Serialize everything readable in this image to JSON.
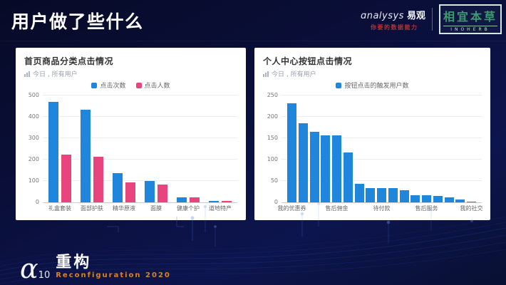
{
  "header": {
    "title": "用户做了些什么",
    "analysys": {
      "wordmark": "ɑnalysys",
      "cjk": "易观",
      "tagline": "你要的数据能力"
    },
    "inoherb": {
      "cjk": "相宜本草",
      "latin": "INOHERB"
    }
  },
  "theme": {
    "bar_blue": "#1f86dc",
    "bar_pink": "#e8457e",
    "accent_orange": "#d9822b",
    "inoherb_green": "#3f9a74",
    "analysys_red": "#b03434",
    "card_bg": "#ffffff",
    "page_bg": "#0a0f3a"
  },
  "chart_data": [
    {
      "type": "bar",
      "title": "首页商品分类点击情况",
      "subtitle": "今日 , 所有用户",
      "categories": [
        "礼盒套装",
        "面部护肤",
        "精华原液",
        "面膜",
        "健康个护",
        "道地特产"
      ],
      "series": [
        {
          "name": "点击次数",
          "color": "#1f86dc",
          "values": [
            470,
            435,
            138,
            100,
            25,
            8
          ]
        },
        {
          "name": "点击人数",
          "color": "#e8457e",
          "values": [
            222,
            213,
            95,
            85,
            22,
            8
          ]
        }
      ],
      "xlabel": "",
      "ylabel": "",
      "ylim": [
        0,
        500
      ],
      "yticks": [
        0,
        100,
        200,
        300,
        400,
        500
      ],
      "grid": true,
      "legend_position": "top"
    },
    {
      "type": "bar",
      "title": "个人中心按钮点击情况",
      "subtitle": "今日 , 所有用户",
      "categories": [
        "我的优惠券",
        "",
        "",
        "",
        "售后佣金",
        "",
        "",
        "",
        "待付款",
        "",
        "",
        "",
        "售后服务",
        "",
        "",
        "",
        "我的社交"
      ],
      "series": [
        {
          "name": "按钮点击的触发用户数",
          "color": "#1f86dc",
          "values": [
            232,
            185,
            165,
            157,
            156,
            116,
            44,
            34,
            33,
            33,
            29,
            17,
            17,
            15,
            12,
            7,
            1
          ]
        }
      ],
      "xlabel": "",
      "ylabel": "",
      "ylim": [
        0,
        250
      ],
      "yticks": [
        0,
        50,
        100,
        150,
        200,
        250
      ],
      "grid": true,
      "legend_position": "top"
    }
  ],
  "footer": {
    "logo_alpha": "ɑ",
    "logo_number": "10",
    "brand": "重构",
    "event": "Reconfiguration 2020"
  }
}
